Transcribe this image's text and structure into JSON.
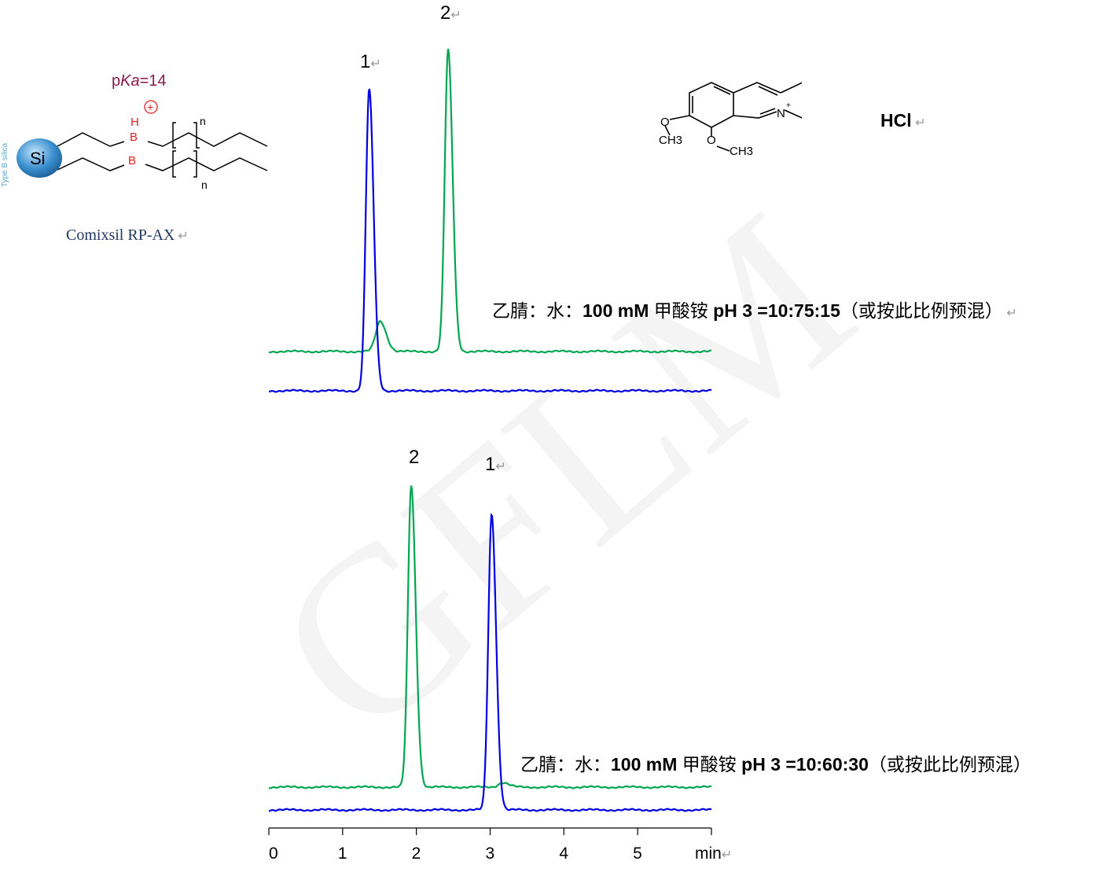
{
  "stationary_phase": {
    "name": "Comixsil RP-AX",
    "pka_label": "pKa=14",
    "pka_prefix": "p",
    "pka_italic": "Ka",
    "pka_value": "=14",
    "bead_label": "Si",
    "atom_labels": [
      "H",
      "B",
      "B"
    ],
    "charge": "+",
    "repeat": "n",
    "side_caption": "Type B silica",
    "colors": {
      "bead": "#3a8fcf",
      "heteroatom": "#e02020",
      "pka": "#8b1a4a",
      "name": "#1f3864"
    }
  },
  "analyte": {
    "salt": "HCl",
    "atom_labels": {
      "nitrogen": "N",
      "charge": "+",
      "oxygen": "O",
      "methyl": "CH3"
    }
  },
  "chart_data": [
    {
      "type": "line",
      "xlabel": "min",
      "xlim": [
        0,
        6
      ],
      "x_ticks": [
        "0",
        "1",
        "2",
        "3",
        "4",
        "5"
      ],
      "condition": {
        "prefix": "乙腈：水：",
        "bold1": "100 mM",
        "mid": " 甲酸铵  ",
        "bold2": "pH 3 =10:75:15",
        "suffix": "（或按此比例预混）"
      },
      "peak_labels": [
        {
          "text": "1",
          "rt": 1.36
        },
        {
          "text": "2",
          "rt": 2.43
        }
      ],
      "series": [
        {
          "color": "#00a651",
          "peaks": [
            {
              "rt": 1.51,
              "height": 0.1
            },
            {
              "rt": 2.43,
              "height": 1.0
            }
          ]
        },
        {
          "color": "#0000e0",
          "peaks": [
            {
              "rt": 1.36,
              "height": 1.0
            }
          ]
        }
      ]
    },
    {
      "type": "line",
      "xlabel": "min",
      "xlim": [
        0,
        6
      ],
      "x_ticks": [
        "0",
        "1",
        "2",
        "3",
        "4",
        "5"
      ],
      "condition": {
        "prefix": "乙腈：水：",
        "bold1": "100 mM",
        "mid": "  甲酸铵  ",
        "bold2": "pH 3 =10:60:30",
        "suffix": "（或按此比例预混）"
      },
      "peak_labels": [
        {
          "text": "2",
          "rt": 1.93
        },
        {
          "text": "1",
          "rt": 3.02
        }
      ],
      "series": [
        {
          "color": "#00a651",
          "peaks": [
            {
              "rt": 1.93,
              "height": 1.0
            },
            {
              "rt": 3.17,
              "height": 0.015
            }
          ]
        },
        {
          "color": "#0000e0",
          "peaks": [
            {
              "rt": 3.02,
              "height": 0.98
            }
          ]
        }
      ]
    }
  ]
}
